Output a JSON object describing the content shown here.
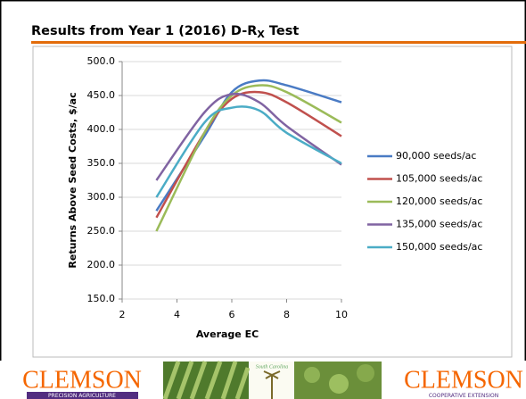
{
  "chart_data": {
    "type": "line",
    "title_parts": [
      "Results from Year 1 (2016) D-R",
      "X",
      " Test"
    ],
    "xlabel": "Average EC",
    "ylabel": "Returns Above Seed Costs, $/ac",
    "x": [
      3.25,
      5,
      6,
      7,
      8,
      10
    ],
    "series": [
      {
        "name": "90,000 seeds/ac",
        "color": "#4a7bc4",
        "values": [
          280,
          390,
          455,
          472,
          465,
          440
        ]
      },
      {
        "name": "105,000 seeds/ac",
        "color": "#c0504d",
        "values": [
          270,
          395,
          445,
          455,
          440,
          390
        ]
      },
      {
        "name": "120,000 seeds/ac",
        "color": "#9bbb59",
        "values": [
          250,
          395,
          450,
          465,
          455,
          410
        ]
      },
      {
        "name": "135,000 seeds/ac",
        "color": "#8064a2",
        "values": [
          325,
          425,
          452,
          440,
          405,
          348
        ]
      },
      {
        "name": "150,000 seeds/ac",
        "color": "#4bacc6",
        "values": [
          300,
          410,
          432,
          428,
          395,
          350
        ]
      }
    ],
    "xlim": [
      2,
      10
    ],
    "xticks": [
      2,
      4,
      6,
      8,
      10
    ],
    "ylim": [
      150,
      500
    ],
    "yticks": [
      {
        "value": 150,
        "label": "150.0"
      },
      {
        "value": 200,
        "label": "200.0"
      },
      {
        "value": 250,
        "label": "250.0"
      },
      {
        "value": 300,
        "label": "300.0"
      },
      {
        "value": 350,
        "label": "350.0"
      },
      {
        "value": 400,
        "label": "400.0"
      },
      {
        "value": 450,
        "label": "450.0"
      },
      {
        "value": 500,
        "label": "500.0"
      }
    ],
    "grid": true,
    "legend": "right"
  },
  "footer": {
    "left_logo": "CLEMSON",
    "left_sub": "PRECISION AGRICULTURE",
    "center_logo": "South Carolina",
    "right_logo": "CLEMSON",
    "right_sub": "COOPERATIVE EXTENSION"
  }
}
